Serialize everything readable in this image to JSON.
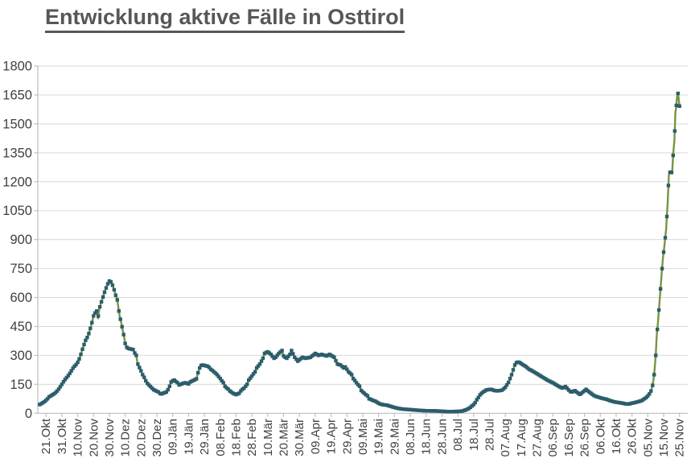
{
  "title": "Entwicklung aktive Fälle in Osttirol",
  "chart_data": {
    "type": "line",
    "title": "Entwicklung aktive Fälle in Osttirol",
    "xlabel": "",
    "ylabel": "",
    "legend": "none",
    "grid": true,
    "ylim": [
      0,
      1800
    ],
    "y_ticks": [
      0,
      150,
      300,
      450,
      600,
      750,
      900,
      1050,
      1200,
      1350,
      1500,
      1650,
      1800
    ],
    "x_tick_interval_days": 10,
    "x_tick_labels": [
      "21.Okt",
      "31.Okt",
      "10.Nov",
      "20.Nov",
      "30.Nov",
      "10.Dez",
      "20.Dez",
      "30.Dez",
      "09.Jän",
      "19.Jän",
      "29.Jän",
      "08.Feb",
      "18.Feb",
      "28.Feb",
      "10.Mär",
      "20.Mär",
      "30.Mär",
      "09.Apr",
      "19.Apr",
      "29.Apr",
      "09.Mai",
      "19.Mai",
      "29.Mai",
      "08.Jun",
      "18.Jun",
      "28.Jun",
      "08.Jul",
      "18.Jul",
      "28.Jul",
      "07.Aug",
      "17.Aug",
      "27.Aug",
      "06.Sep",
      "16.Sep",
      "26.Sep",
      "06.Okt",
      "16.Okt",
      "26.Okt",
      "05.Nov",
      "15.Nov",
      "25.Nov"
    ],
    "colors": {
      "line": "#78953E",
      "marker": "#2C5D6B",
      "grid": "#D9D9D9",
      "axis": "#BFBFBF",
      "labels": "#404040",
      "title": "#575757"
    },
    "points_day_value": [
      [
        -4,
        45
      ],
      [
        -2.5,
        52
      ],
      [
        -1,
        60
      ],
      [
        0.5,
        70
      ],
      [
        2,
        85
      ],
      [
        3.5,
        93
      ],
      [
        5,
        100
      ],
      [
        6.5,
        110
      ],
      [
        8,
        125
      ],
      [
        10,
        150
      ],
      [
        11.5,
        170
      ],
      [
        13,
        185
      ],
      [
        14.5,
        200
      ],
      [
        16,
        220
      ],
      [
        17.5,
        240
      ],
      [
        19,
        252
      ],
      [
        20.5,
        270
      ],
      [
        22,
        305
      ],
      [
        23.5,
        345
      ],
      [
        25,
        378
      ],
      [
        26.5,
        400
      ],
      [
        28,
        440
      ],
      [
        29,
        470
      ],
      [
        30,
        505
      ],
      [
        31,
        520
      ],
      [
        32,
        530
      ],
      [
        32.8,
        492
      ],
      [
        33.6,
        540
      ],
      [
        34.5,
        565
      ],
      [
        35.5,
        590
      ],
      [
        36.5,
        615
      ],
      [
        37.5,
        640
      ],
      [
        38.5,
        660
      ],
      [
        39.5,
        682
      ],
      [
        40.3,
        688
      ],
      [
        41.2,
        678
      ],
      [
        42.2,
        660
      ],
      [
        43,
        640
      ],
      [
        44,
        612
      ],
      [
        45,
        588
      ],
      [
        45.8,
        540
      ],
      [
        46.5,
        505
      ],
      [
        47.5,
        470
      ],
      [
        48.3,
        435
      ],
      [
        49.2,
        400
      ],
      [
        50,
        362
      ],
      [
        51,
        342
      ],
      [
        52,
        336
      ],
      [
        53,
        334
      ],
      [
        54,
        332
      ],
      [
        55,
        330
      ],
      [
        56,
        312
      ],
      [
        57,
        300
      ],
      [
        57.8,
        258
      ],
      [
        58.8,
        240
      ],
      [
        60,
        220
      ],
      [
        61,
        200
      ],
      [
        62,
        186
      ],
      [
        63,
        168
      ],
      [
        64,
        155
      ],
      [
        65,
        146
      ],
      [
        66,
        138
      ],
      [
        67,
        130
      ],
      [
        68,
        122
      ],
      [
        69,
        118
      ],
      [
        70,
        114
      ],
      [
        71,
        110
      ],
      [
        72,
        102
      ],
      [
        73,
        100
      ],
      [
        74,
        104
      ],
      [
        75,
        107
      ],
      [
        76,
        110
      ],
      [
        77,
        122
      ],
      [
        78,
        140
      ],
      [
        79,
        162
      ],
      [
        80,
        168
      ],
      [
        81,
        172
      ],
      [
        82,
        165
      ],
      [
        83,
        158
      ],
      [
        84,
        147
      ],
      [
        85,
        150
      ],
      [
        86,
        153
      ],
      [
        87,
        156
      ],
      [
        88,
        158
      ],
      [
        89,
        155
      ],
      [
        90,
        152
      ],
      [
        91,
        162
      ],
      [
        92,
        166
      ],
      [
        93,
        170
      ],
      [
        94,
        174
      ],
      [
        95,
        178
      ],
      [
        96,
        210
      ],
      [
        97,
        235
      ],
      [
        98,
        248
      ],
      [
        99,
        250
      ],
      [
        100,
        248
      ],
      [
        101,
        246
      ],
      [
        102,
        244
      ],
      [
        103,
        238
      ],
      [
        104,
        228
      ],
      [
        105,
        222
      ],
      [
        106,
        215
      ],
      [
        107,
        208
      ],
      [
        108,
        200
      ],
      [
        109,
        190
      ],
      [
        110,
        180
      ],
      [
        111,
        168
      ],
      [
        112,
        158
      ],
      [
        113,
        140
      ],
      [
        114,
        132
      ],
      [
        115,
        125
      ],
      [
        116,
        116
      ],
      [
        117,
        110
      ],
      [
        118,
        104
      ],
      [
        119,
        100
      ],
      [
        120,
        97
      ],
      [
        121,
        100
      ],
      [
        122,
        104
      ],
      [
        123,
        116
      ],
      [
        124,
        124
      ],
      [
        125,
        130
      ],
      [
        126,
        140
      ],
      [
        127,
        150
      ],
      [
        128,
        172
      ],
      [
        129,
        182
      ],
      [
        130,
        193
      ],
      [
        131,
        204
      ],
      [
        132,
        215
      ],
      [
        133,
        235
      ],
      [
        134,
        245
      ],
      [
        135,
        255
      ],
      [
        136,
        270
      ],
      [
        137,
        285
      ],
      [
        138,
        310
      ],
      [
        139,
        315
      ],
      [
        140,
        318
      ],
      [
        141,
        312
      ],
      [
        142,
        305
      ],
      [
        143,
        295
      ],
      [
        144,
        285
      ],
      [
        145,
        290
      ],
      [
        146,
        300
      ],
      [
        147,
        310
      ],
      [
        148,
        318
      ],
      [
        149,
        325
      ],
      [
        150,
        297
      ],
      [
        151,
        290
      ],
      [
        152,
        285
      ],
      [
        153,
        295
      ],
      [
        154,
        305
      ],
      [
        155,
        325
      ],
      [
        156,
        308
      ],
      [
        157,
        290
      ],
      [
        158,
        280
      ],
      [
        159,
        270
      ],
      [
        160,
        277
      ],
      [
        161,
        284
      ],
      [
        162,
        290
      ],
      [
        163,
        287
      ],
      [
        164,
        285
      ],
      [
        165,
        287
      ],
      [
        166,
        288
      ],
      [
        167,
        290
      ],
      [
        168,
        297
      ],
      [
        169,
        303
      ],
      [
        170,
        310
      ],
      [
        171,
        305
      ],
      [
        172,
        300
      ],
      [
        173,
        302
      ],
      [
        174,
        305
      ],
      [
        175,
        302
      ],
      [
        176,
        300
      ],
      [
        177,
        297
      ],
      [
        178,
        300
      ],
      [
        179,
        305
      ],
      [
        180,
        300
      ],
      [
        181,
        295
      ],
      [
        182,
        290
      ],
      [
        183,
        272
      ],
      [
        184,
        255
      ],
      [
        185,
        252
      ],
      [
        186,
        250
      ],
      [
        187,
        242
      ],
      [
        188,
        235
      ],
      [
        189,
        240
      ],
      [
        190,
        228
      ],
      [
        191,
        215
      ],
      [
        192,
        208
      ],
      [
        193,
        200
      ],
      [
        194,
        180
      ],
      [
        195,
        170
      ],
      [
        196,
        158
      ],
      [
        197,
        148
      ],
      [
        198,
        140
      ],
      [
        199,
        118
      ],
      [
        200,
        110
      ],
      [
        201,
        103
      ],
      [
        202,
        96
      ],
      [
        203,
        90
      ],
      [
        204,
        75
      ],
      [
        205,
        72
      ],
      [
        206,
        68
      ],
      [
        207,
        65
      ],
      [
        208,
        62
      ],
      [
        209,
        57
      ],
      [
        210,
        52
      ],
      [
        211,
        48
      ],
      [
        212,
        46
      ],
      [
        213,
        44
      ],
      [
        214,
        43
      ],
      [
        215,
        42
      ],
      [
        216,
        40
      ],
      [
        217,
        37
      ],
      [
        218,
        35
      ],
      [
        219,
        32
      ],
      [
        220,
        30
      ],
      [
        222,
        26
      ],
      [
        224,
        23
      ],
      [
        226,
        21
      ],
      [
        228,
        20
      ],
      [
        231,
        18
      ],
      [
        234,
        16
      ],
      [
        237,
        14
      ],
      [
        240,
        13
      ],
      [
        243,
        12
      ],
      [
        246,
        12
      ],
      [
        249,
        11
      ],
      [
        252,
        9
      ],
      [
        255,
        8
      ],
      [
        258,
        9
      ],
      [
        261,
        10
      ],
      [
        263,
        12
      ],
      [
        265,
        17
      ],
      [
        267,
        25
      ],
      [
        269,
        38
      ],
      [
        270,
        45
      ],
      [
        271,
        55
      ],
      [
        272,
        70
      ],
      [
        273,
        82
      ],
      [
        274,
        95
      ],
      [
        275,
        103
      ],
      [
        276,
        110
      ],
      [
        277,
        115
      ],
      [
        278,
        120
      ],
      [
        279,
        122
      ],
      [
        280,
        123
      ],
      [
        281,
        124
      ],
      [
        282,
        121
      ],
      [
        283,
        118
      ],
      [
        284,
        117
      ],
      [
        285,
        116
      ],
      [
        286,
        117
      ],
      [
        287,
        118
      ],
      [
        288,
        120
      ],
      [
        289,
        127
      ],
      [
        290,
        135
      ],
      [
        291,
        147
      ],
      [
        292,
        160
      ],
      [
        293,
        180
      ],
      [
        294,
        200
      ],
      [
        295,
        225
      ],
      [
        296,
        250
      ],
      [
        297,
        262
      ],
      [
        298,
        265
      ],
      [
        299,
        263
      ],
      [
        300,
        258
      ],
      [
        301,
        252
      ],
      [
        302,
        247
      ],
      [
        303,
        242
      ],
      [
        304,
        235
      ],
      [
        305,
        228
      ],
      [
        306,
        224
      ],
      [
        307,
        220
      ],
      [
        308,
        215
      ],
      [
        309,
        210
      ],
      [
        310,
        205
      ],
      [
        311,
        200
      ],
      [
        312,
        195
      ],
      [
        313,
        190
      ],
      [
        314,
        185
      ],
      [
        315,
        180
      ],
      [
        316,
        175
      ],
      [
        317,
        170
      ],
      [
        318,
        166
      ],
      [
        319,
        162
      ],
      [
        320,
        158
      ],
      [
        321,
        153
      ],
      [
        322,
        148
      ],
      [
        323,
        143
      ],
      [
        324,
        138
      ],
      [
        325,
        134
      ],
      [
        326,
        131
      ],
      [
        327,
        134
      ],
      [
        328,
        138
      ],
      [
        329,
        130
      ],
      [
        330,
        120
      ],
      [
        331,
        113
      ],
      [
        332,
        110
      ],
      [
        333,
        114
      ],
      [
        334,
        117
      ],
      [
        335,
        110
      ],
      [
        336,
        104
      ],
      [
        337,
        98
      ],
      [
        338,
        103
      ],
      [
        339,
        110
      ],
      [
        340,
        117
      ],
      [
        341,
        124
      ],
      [
        342,
        117
      ],
      [
        343,
        110
      ],
      [
        344,
        104
      ],
      [
        345,
        98
      ],
      [
        346,
        92
      ],
      [
        347,
        88
      ],
      [
        348,
        85
      ],
      [
        349,
        83
      ],
      [
        350,
        80
      ],
      [
        352,
        76
      ],
      [
        354,
        72
      ],
      [
        356,
        66
      ],
      [
        358,
        61
      ],
      [
        360,
        57
      ],
      [
        362,
        55
      ],
      [
        364,
        52
      ],
      [
        366,
        49
      ],
      [
        368,
        48
      ],
      [
        370,
        52
      ],
      [
        372,
        56
      ],
      [
        374,
        60
      ],
      [
        376,
        65
      ],
      [
        377,
        70
      ],
      [
        378,
        76
      ],
      [
        379,
        82
      ],
      [
        380,
        90
      ],
      [
        381,
        100
      ],
      [
        382,
        115
      ],
      [
        383,
        145
      ],
      [
        384,
        200
      ],
      [
        385,
        300
      ],
      [
        385.5,
        390
      ],
      [
        386.5,
        480
      ],
      [
        387.5,
        590
      ],
      [
        388.5,
        700
      ],
      [
        389.5,
        800
      ],
      [
        390.5,
        870
      ],
      [
        391.5,
        950
      ],
      [
        392.5,
        1090
      ],
      [
        393.3,
        1235
      ],
      [
        394.3,
        1255
      ],
      [
        395.3,
        1245
      ],
      [
        396.1,
        1350
      ],
      [
        396.8,
        1415
      ],
      [
        397.4,
        1560
      ],
      [
        397.9,
        1585
      ],
      [
        398.4,
        1640
      ],
      [
        399,
        1658
      ],
      [
        399.5,
        1630
      ],
      [
        400,
        1592
      ]
    ]
  }
}
